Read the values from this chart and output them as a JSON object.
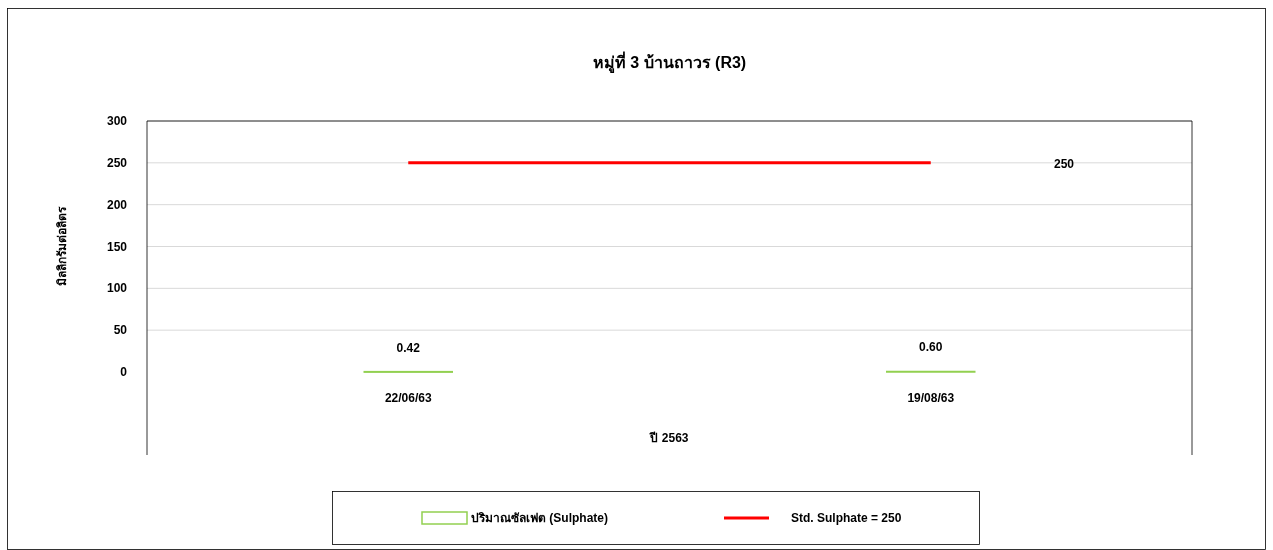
{
  "chart_data": {
    "type": "bar",
    "title": "หมู่ที่ 3 บ้านถาวร (R3)",
    "xlabel": "ปี 2563",
    "ylabel": "มิลลิกรัมต่อลิตร",
    "categories": [
      "22/06/63",
      "19/08/63"
    ],
    "series": [
      {
        "name": "ปริมาณซัลเฟต (Sulphate)",
        "color": "#92d050",
        "values": [
          0.42,
          0.6
        ],
        "value_labels": [
          "0.42",
          "0.60"
        ]
      },
      {
        "name": "Std. Sulphate = 250",
        "type": "line",
        "color": "#ff0000",
        "values": [
          250,
          250
        ],
        "marker": "none"
      }
    ],
    "annotations": [
      "250"
    ],
    "ylim": [
      0,
      300
    ],
    "yticks": [
      0,
      50,
      100,
      150,
      200,
      250,
      300
    ],
    "grid": "y",
    "legend": "bottom"
  }
}
